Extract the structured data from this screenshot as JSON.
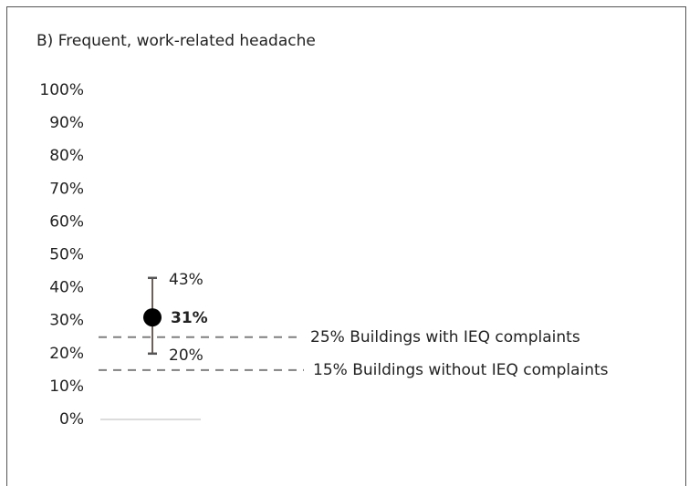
{
  "chart_data": {
    "type": "errorbar",
    "title": "B) Frequent, work-related headache",
    "categories": [
      null
    ],
    "series": [
      {
        "color": "#000000",
        "bar_color": "#3b2a20",
        "values": [
          31
        ],
        "value_labels": [
          "31%"
        ],
        "lower": [
          20
        ],
        "lower_labels": [
          "20%"
        ],
        "upper": [
          43
        ],
        "upper_labels": [
          "43%"
        ]
      }
    ],
    "reference_lines": [
      {
        "value": 25,
        "label": "25% Buildings with IEQ complaints",
        "color": "#808080"
      },
      {
        "value": 15,
        "label": "15% Buildings without IEQ complaints",
        "color": "#808080"
      }
    ],
    "ylim": [
      0,
      100
    ],
    "yticks": [
      {
        "value": 0,
        "label": "0%"
      },
      {
        "value": 10,
        "label": "10%"
      },
      {
        "value": 20,
        "label": "20%"
      },
      {
        "value": 30,
        "label": "30%"
      },
      {
        "value": 40,
        "label": "40%"
      },
      {
        "value": 50,
        "label": "50%"
      },
      {
        "value": 60,
        "label": "60%"
      },
      {
        "value": 70,
        "label": "70%"
      },
      {
        "value": 80,
        "label": "80%"
      },
      {
        "value": 90,
        "label": "90%"
      },
      {
        "value": 100,
        "label": "100%"
      }
    ],
    "grid": false
  }
}
